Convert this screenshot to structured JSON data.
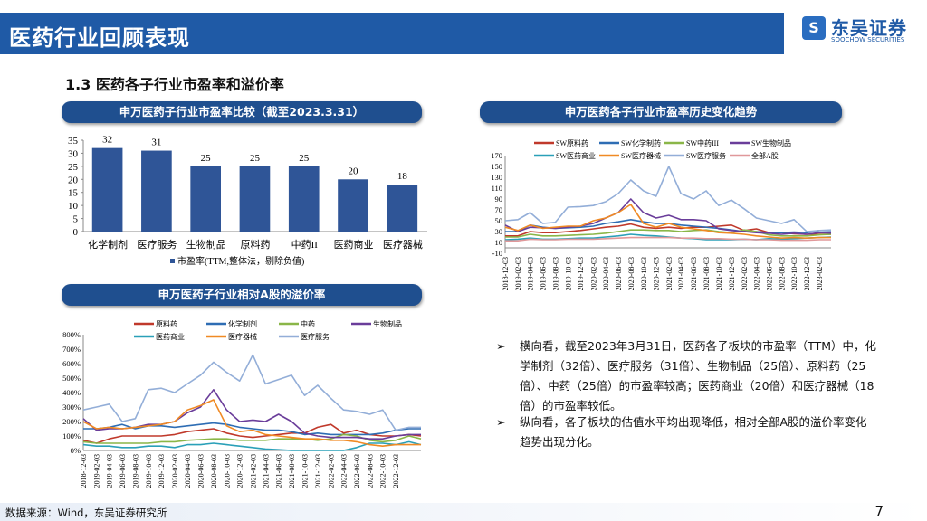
{
  "header": {
    "title": "医药行业回顾表现",
    "logo_cn": "东吴证券",
    "logo_en": "SOOCHOW SECURITIES",
    "logo_mark": "SCS"
  },
  "section_title": "1.3 医药各子行业市盈率和溢价率",
  "panels": {
    "bar_title": "申万医药子行业市盈率比较（截至2023.3.31）",
    "pe_title": "申万医药各子行业市盈率历史变化趋势",
    "premium_title": "申万医药子行业相对A股的溢价率"
  },
  "bullets": [
    {
      "icon": "arrow-bullet",
      "text": "横向看，截至2023年3月31日，医药各子板块的市盈率（TTM）中，化学制剂（32倍）、医疗服务（31倍）、生物制品（25倍）、原料药（25倍）、中药（25倍）的市盈率较高；医药商业（20倍）和医疗器械（18倍）的市盈率较低。"
    },
    {
      "icon": "arrow-bullet",
      "text": "纵向看，各子板块的估值水平均出现降低，相对全部A股的溢价率变化趋势出现分化。"
    }
  ],
  "footer": {
    "source": "数据来源：Wind，东吴证券研究所",
    "page": "7"
  },
  "chart_data": [
    {
      "type": "bar",
      "categories": [
        "化学制剂",
        "医疗服务",
        "生物制品",
        "原料药",
        "中药II",
        "医药商业",
        "医疗器械"
      ],
      "values": [
        32,
        31,
        25,
        25,
        25,
        20,
        18
      ],
      "ylim": [
        0,
        35
      ],
      "yticks": [
        0,
        5,
        10,
        15,
        20,
        25,
        30,
        35
      ],
      "legend": "市盈率(TTM,整体法，剔除负值)",
      "legend_placement": "bottom",
      "color": "#2f5597",
      "grid": false
    },
    {
      "type": "line",
      "ylim": [
        -10,
        170
      ],
      "yticks": [
        -10,
        10,
        30,
        50,
        70,
        90,
        110,
        130,
        150,
        170
      ],
      "yformat": "",
      "legend_placement": "top",
      "grid": false,
      "xticks": [
        "2018-12-03",
        "2019-02-03",
        "2019-04-03",
        "2019-06-03",
        "2019-08-03",
        "2019-10-03",
        "2019-12-03",
        "2020-02-03",
        "2020-04-03",
        "2020-06-03",
        "2020-08-03",
        "2020-10-03",
        "2020-12-03",
        "2021-02-03",
        "2021-04-03",
        "2021-06-03",
        "2021-08-03",
        "2021-10-03",
        "2021-12-03",
        "2022-02-03",
        "2022-04-03",
        "2022-06-03",
        "2022-08-03",
        "2022-10-03",
        "2022-12-03",
        "2023-02-03"
      ],
      "x": [
        "2018-12-03",
        "2019-02-03",
        "2019-04-03",
        "2019-06-03",
        "2019-08-03",
        "2019-10-03",
        "2019-12-03",
        "2020-02-03",
        "2020-04-03",
        "2020-06-03",
        "2020-08-03",
        "2020-10-03",
        "2020-12-03",
        "2021-02-03",
        "2021-04-03",
        "2021-06-03",
        "2021-08-03",
        "2021-10-03",
        "2021-12-03",
        "2022-02-03",
        "2022-04-03",
        "2022-06-03",
        "2022-08-03",
        "2022-10-03",
        "2022-12-03",
        "2023-02-03",
        "2023-03-31"
      ],
      "series": [
        {
          "name": "SW原料药",
          "color": "#c0392b",
          "values": [
            22,
            22,
            30,
            28,
            28,
            30,
            32,
            35,
            38,
            40,
            44,
            38,
            36,
            38,
            36,
            38,
            38,
            40,
            42,
            32,
            35,
            28,
            28,
            26,
            25,
            25,
            25
          ]
        },
        {
          "name": "SW化学制药",
          "color": "#2e6db4",
          "values": [
            30,
            30,
            42,
            38,
            36,
            37,
            38,
            40,
            45,
            48,
            52,
            48,
            45,
            45,
            42,
            40,
            38,
            36,
            33,
            30,
            30,
            28,
            28,
            29,
            28,
            32,
            32
          ]
        },
        {
          "name": "SW中药III",
          "color": "#8ab648",
          "values": [
            20,
            20,
            25,
            22,
            22,
            23,
            24,
            25,
            27,
            30,
            33,
            33,
            32,
            32,
            30,
            32,
            33,
            30,
            28,
            33,
            30,
            24,
            22,
            22,
            22,
            24,
            25
          ]
        },
        {
          "name": "SW生物制品",
          "color": "#6a3d9a",
          "values": [
            42,
            30,
            38,
            37,
            36,
            38,
            40,
            45,
            55,
            65,
            90,
            65,
            55,
            60,
            52,
            52,
            50,
            35,
            32,
            30,
            28,
            27,
            25,
            27,
            25,
            28,
            27
          ]
        },
        {
          "name": "SW医药商业",
          "color": "#2aa0b8",
          "values": [
            15,
            16,
            18,
            16,
            16,
            17,
            18,
            18,
            20,
            22,
            25,
            23,
            22,
            20,
            18,
            17,
            15,
            15,
            15,
            16,
            15,
            17,
            16,
            17,
            18,
            19,
            20
          ]
        },
        {
          "name": "SW医疗器械",
          "color": "#f08a24",
          "values": [
            38,
            32,
            42,
            36,
            38,
            40,
            40,
            50,
            55,
            65,
            80,
            45,
            38,
            45,
            38,
            35,
            32,
            28,
            27,
            25,
            22,
            20,
            18,
            19,
            18,
            19,
            19
          ]
        },
        {
          "name": "SW医疗服务",
          "color": "#93aed8",
          "values": [
            50,
            52,
            65,
            45,
            47,
            75,
            76,
            78,
            85,
            100,
            125,
            105,
            95,
            150,
            100,
            90,
            105,
            78,
            88,
            72,
            55,
            50,
            45,
            52,
            30,
            32,
            33
          ]
        },
        {
          "name": "全部A股",
          "color": "#e0989a",
          "values": [
            13,
            13,
            16,
            15,
            15,
            16,
            16,
            16,
            17,
            18,
            19,
            19,
            19,
            19,
            18,
            18,
            17,
            17,
            16,
            16,
            15,
            15,
            14,
            14,
            14,
            15,
            15
          ]
        }
      ]
    },
    {
      "type": "line",
      "ylim": [
        0,
        800
      ],
      "yticks": [
        0,
        100,
        200,
        300,
        400,
        500,
        600,
        700,
        800
      ],
      "yformat": "%",
      "legend_placement": "top",
      "grid": false,
      "xticks": [
        "2018-12-03",
        "2019-02-03",
        "2019-04-03",
        "2019-06-03",
        "2019-08-03",
        "2019-10-03",
        "2019-12-03",
        "2020-02-03",
        "2020-04-03",
        "2020-06-03",
        "2020-08-03",
        "2020-10-03",
        "2020-12-03",
        "2021-02-03",
        "2021-04-03",
        "2021-06-03",
        "2021-08-03",
        "2021-10-03",
        "2021-12-03",
        "2022-02-03",
        "2022-04-03",
        "2022-06-03",
        "2022-08-03",
        "2022-10-03",
        "2022-12-03"
      ],
      "x": [
        "2018-12-03",
        "2019-02-03",
        "2019-04-03",
        "2019-06-03",
        "2019-08-03",
        "2019-10-03",
        "2019-12-03",
        "2020-02-03",
        "2020-04-03",
        "2020-06-03",
        "2020-08-03",
        "2020-10-03",
        "2020-12-03",
        "2021-02-03",
        "2021-04-03",
        "2021-06-03",
        "2021-08-03",
        "2021-10-03",
        "2021-12-03",
        "2022-02-03",
        "2022-04-03",
        "2022-06-03",
        "2022-08-03",
        "2022-10-03",
        "2022-12-03",
        "2023-02-03",
        "2023-03-31"
      ],
      "series": [
        {
          "name": "原料药",
          "color": "#c0392b",
          "values": [
            70,
            50,
            80,
            100,
            100,
            100,
            100,
            110,
            130,
            140,
            150,
            120,
            100,
            90,
            100,
            110,
            120,
            120,
            160,
            180,
            120,
            140,
            110,
            100,
            100,
            110,
            100
          ]
        },
        {
          "name": "化学制剂",
          "color": "#2e6db4",
          "values": [
            150,
            150,
            160,
            180,
            150,
            170,
            170,
            160,
            170,
            180,
            190,
            180,
            160,
            150,
            140,
            140,
            130,
            110,
            120,
            110,
            110,
            110,
            110,
            120,
            140,
            150,
            150
          ]
        },
        {
          "name": "中药",
          "color": "#8ab648",
          "values": [
            60,
            50,
            50,
            50,
            50,
            50,
            60,
            60,
            70,
            75,
            80,
            80,
            70,
            70,
            70,
            80,
            80,
            80,
            70,
            80,
            110,
            100,
            70,
            60,
            70,
            100,
            80
          ]
        },
        {
          "name": "生物制品",
          "color": "#6a3d9a",
          "values": [
            220,
            140,
            150,
            150,
            160,
            180,
            180,
            200,
            260,
            300,
            420,
            280,
            200,
            210,
            200,
            250,
            200,
            120,
            100,
            90,
            90,
            90,
            80,
            80,
            100,
            110,
            110
          ]
        },
        {
          "name": "医药商业",
          "color": "#2aa0b8",
          "values": [
            40,
            30,
            30,
            20,
            20,
            30,
            30,
            20,
            40,
            40,
            50,
            40,
            30,
            20,
            10,
            5,
            0,
            0,
            0,
            0,
            0,
            20,
            50,
            50,
            40,
            60,
            40
          ]
        },
        {
          "name": "医疗器械",
          "color": "#f08a24",
          "values": [
            200,
            150,
            160,
            150,
            160,
            170,
            180,
            200,
            280,
            310,
            350,
            170,
            130,
            140,
            110,
            100,
            90,
            80,
            80,
            70,
            70,
            60,
            40,
            30,
            40,
            40,
            40
          ]
        },
        {
          "name": "医疗服务",
          "color": "#93aed8",
          "values": [
            280,
            300,
            320,
            200,
            220,
            420,
            430,
            400,
            460,
            520,
            610,
            540,
            480,
            660,
            460,
            490,
            520,
            380,
            450,
            360,
            280,
            270,
            250,
            280,
            140,
            160,
            160
          ]
        }
      ]
    }
  ]
}
